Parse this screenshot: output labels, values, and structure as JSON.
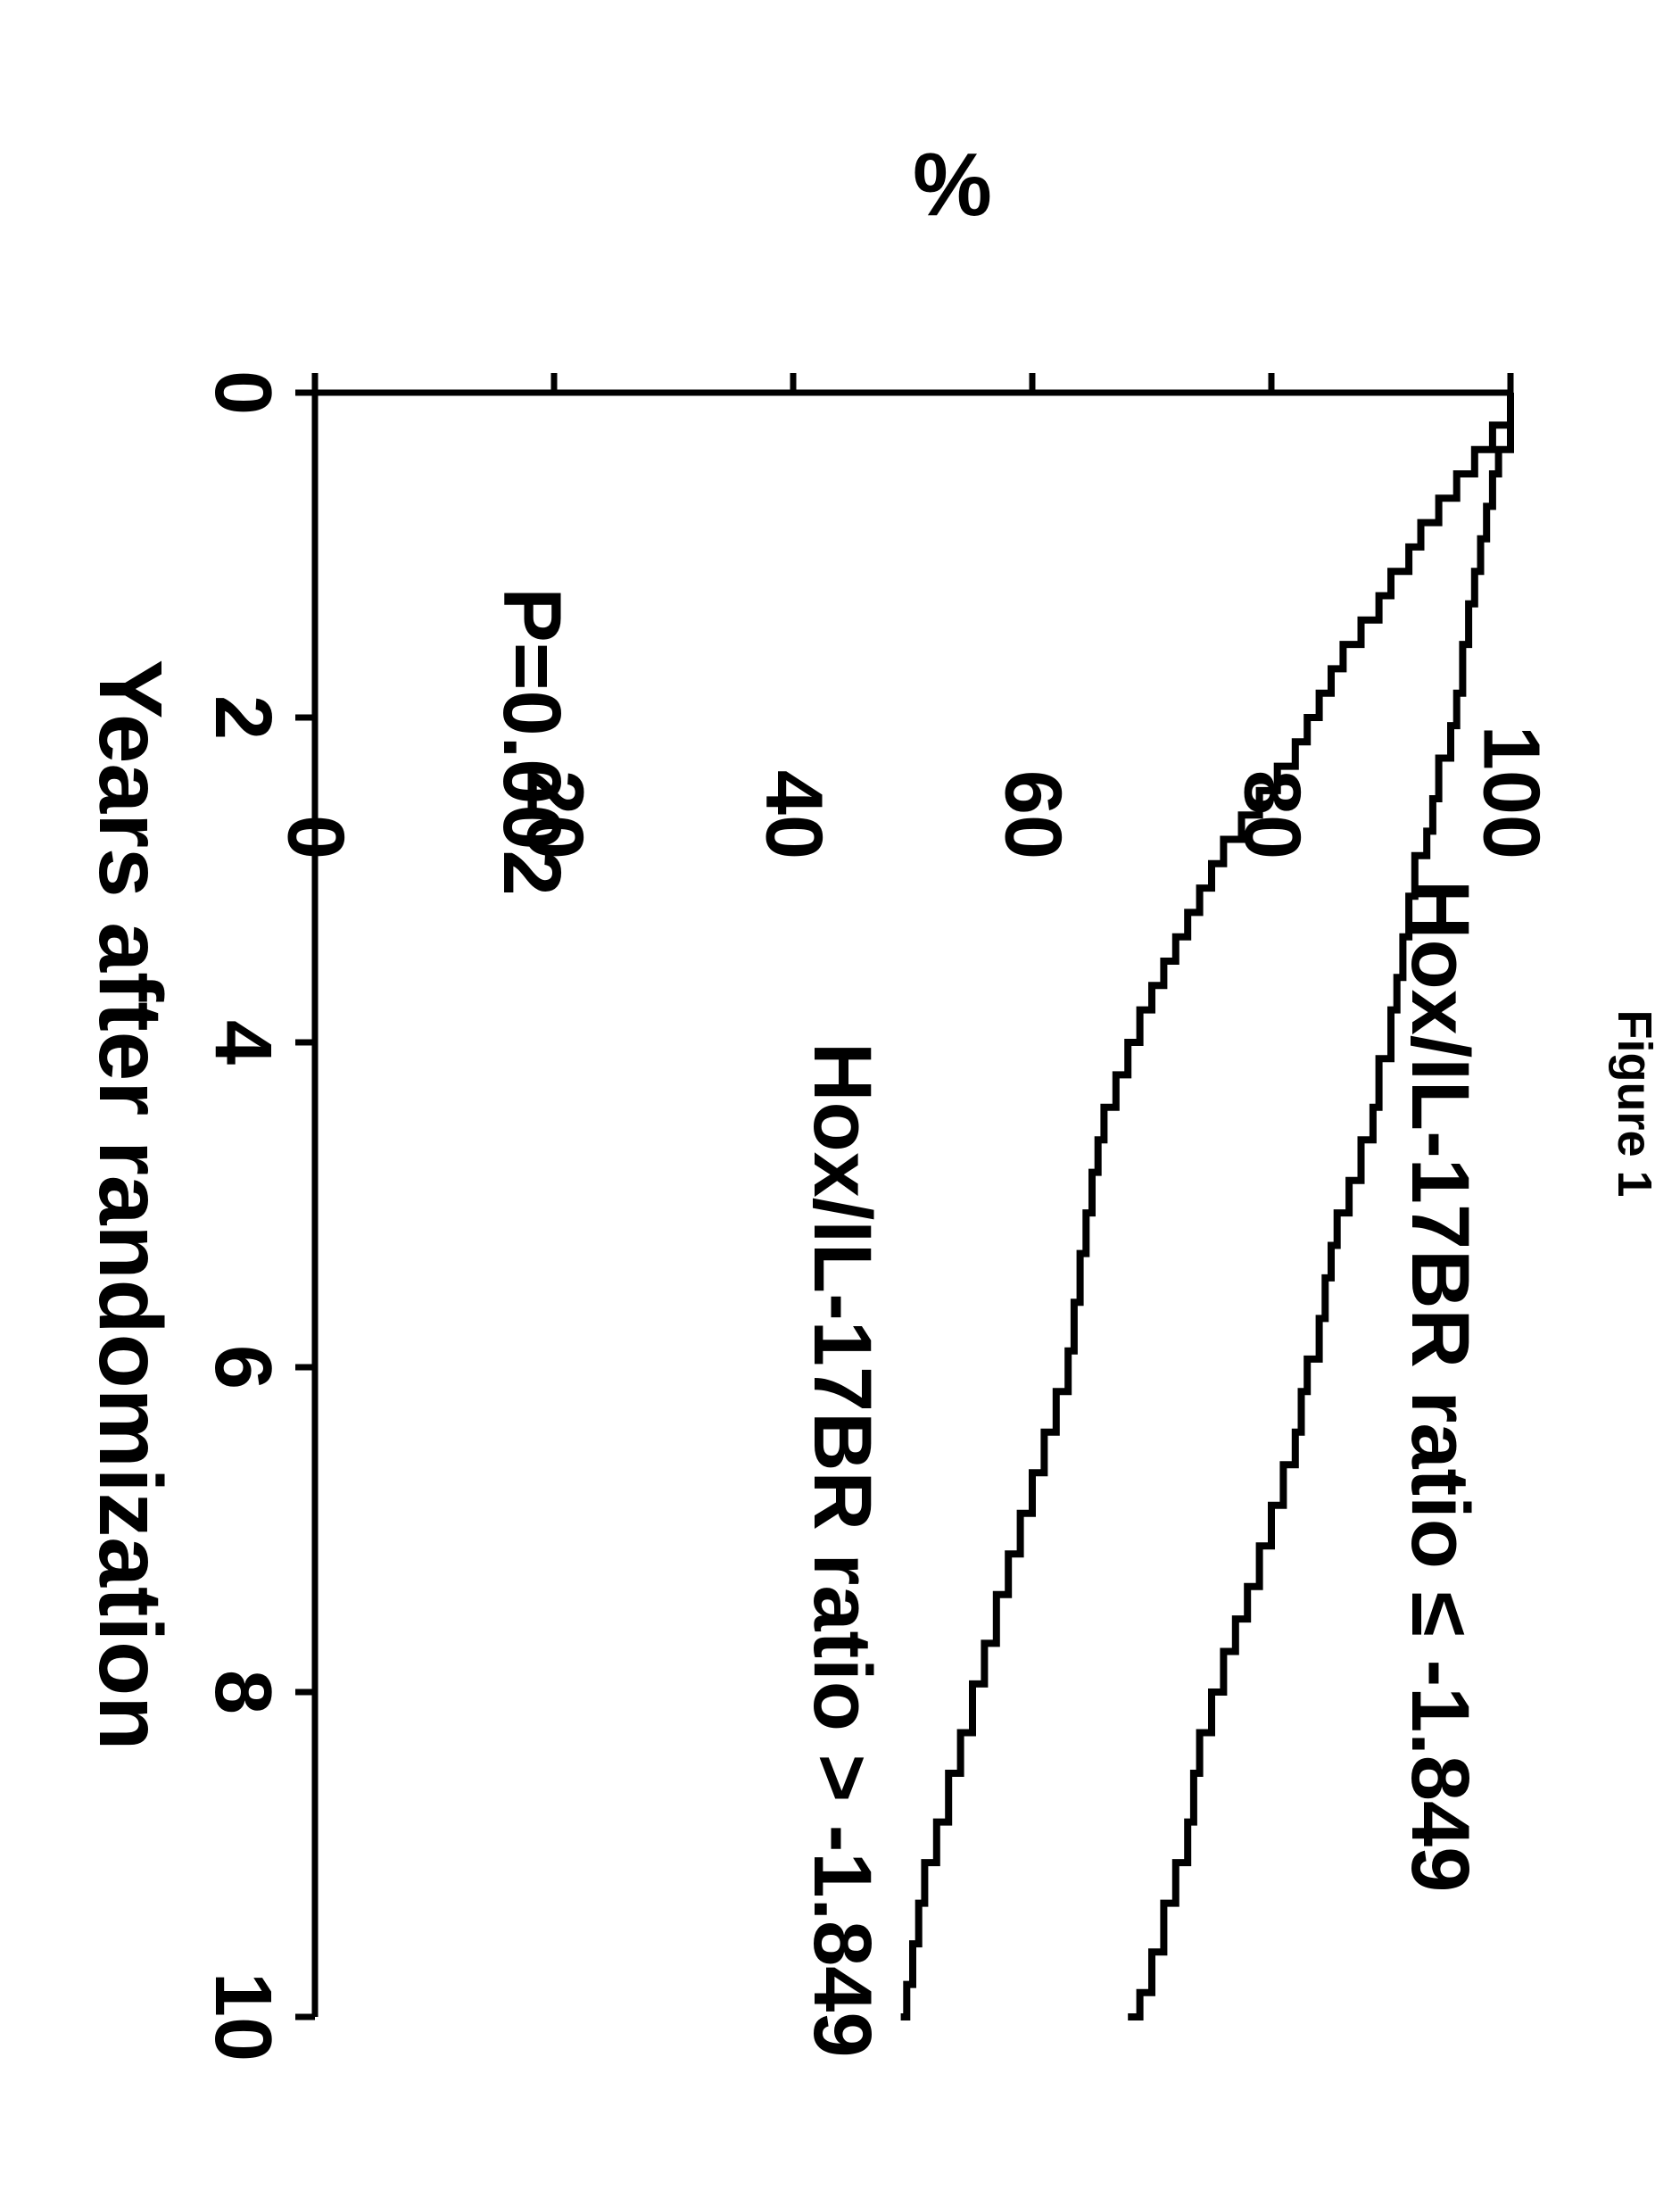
{
  "figure": {
    "title": "Figure 1",
    "chart": {
      "type": "survival-step",
      "xlabel": "Years after randomization",
      "ylabel": "%",
      "xlim": [
        0,
        10
      ],
      "ylim": [
        0,
        100
      ],
      "xticks": [
        0,
        2,
        4,
        6,
        8,
        10
      ],
      "yticks": [
        0,
        20,
        40,
        60,
        80,
        100
      ],
      "background_color": "#ffffff",
      "axis_color": "#000000",
      "axis_width": 7,
      "tick_len": 22,
      "line_color": "#000000",
      "line_width": 8,
      "series": [
        {
          "name": "Hox/IL-17BR ratio ≤ -1.849",
          "points": [
            [
              0,
              100
            ],
            [
              0.35,
              99
            ],
            [
              0.5,
              98.5
            ],
            [
              0.7,
              98
            ],
            [
              0.9,
              97.5
            ],
            [
              1.1,
              97
            ],
            [
              1.3,
              96.5
            ],
            [
              1.55,
              96
            ],
            [
              1.85,
              95.5
            ],
            [
              2.05,
              95
            ],
            [
              2.25,
              94
            ],
            [
              2.5,
              93.5
            ],
            [
              2.7,
              93
            ],
            [
              2.85,
              92
            ],
            [
              3.1,
              91.5
            ],
            [
              3.35,
              91
            ],
            [
              3.6,
              90.5
            ],
            [
              3.8,
              90
            ],
            [
              4.1,
              89
            ],
            [
              4.4,
              88.5
            ],
            [
              4.6,
              87.5
            ],
            [
              4.85,
              86.5
            ],
            [
              5.05,
              85.5
            ],
            [
              5.25,
              85
            ],
            [
              5.45,
              84.5
            ],
            [
              5.7,
              84
            ],
            [
              5.95,
              83
            ],
            [
              6.15,
              82.5
            ],
            [
              6.4,
              82
            ],
            [
              6.6,
              81
            ],
            [
              6.85,
              80
            ],
            [
              7.1,
              79
            ],
            [
              7.35,
              78
            ],
            [
              7.55,
              77
            ],
            [
              7.75,
              76
            ],
            [
              8.0,
              75
            ],
            [
              8.25,
              74
            ],
            [
              8.5,
              73.5
            ],
            [
              8.8,
              73
            ],
            [
              9.05,
              72
            ],
            [
              9.3,
              71
            ],
            [
              9.6,
              70
            ],
            [
              9.85,
              69
            ],
            [
              10,
              68
            ]
          ]
        },
        {
          "name": "Hox/IL-17BR ratio > -1.849",
          "points": [
            [
              0,
              100
            ],
            [
              0.2,
              98.5
            ],
            [
              0.35,
              97
            ],
            [
              0.5,
              95.5
            ],
            [
              0.65,
              94
            ],
            [
              0.8,
              92.5
            ],
            [
              0.95,
              91.5
            ],
            [
              1.1,
              90
            ],
            [
              1.25,
              89
            ],
            [
              1.4,
              87.5
            ],
            [
              1.55,
              86
            ],
            [
              1.7,
              85
            ],
            [
              1.85,
              84
            ],
            [
              2.0,
              83
            ],
            [
              2.15,
              82
            ],
            [
              2.3,
              80.5
            ],
            [
              2.45,
              79
            ],
            [
              2.6,
              77.5
            ],
            [
              2.75,
              76
            ],
            [
              2.9,
              75
            ],
            [
              3.05,
              74
            ],
            [
              3.2,
              73
            ],
            [
              3.35,
              72
            ],
            [
              3.5,
              71
            ],
            [
              3.65,
              70
            ],
            [
              3.8,
              69
            ],
            [
              4.0,
              68
            ],
            [
              4.2,
              67
            ],
            [
              4.4,
              66
            ],
            [
              4.6,
              65.5
            ],
            [
              4.8,
              65
            ],
            [
              5.05,
              64.5
            ],
            [
              5.3,
              64
            ],
            [
              5.6,
              63.5
            ],
            [
              5.9,
              63
            ],
            [
              6.15,
              62
            ],
            [
              6.4,
              61
            ],
            [
              6.65,
              60
            ],
            [
              6.9,
              59
            ],
            [
              7.15,
              58
            ],
            [
              7.4,
              57
            ],
            [
              7.7,
              56
            ],
            [
              7.95,
              55
            ],
            [
              8.25,
              54
            ],
            [
              8.5,
              53
            ],
            [
              8.8,
              52
            ],
            [
              9.05,
              51
            ],
            [
              9.3,
              50.5
            ],
            [
              9.55,
              50
            ],
            [
              9.8,
              49.5
            ],
            [
              10,
              49
            ]
          ]
        }
      ],
      "annotations": {
        "curve1_label": "Hox/IL-17BR ratio ≤ -1.849",
        "curve1_label_pos_xy": [
          3.0,
          98
        ],
        "curve2_label": "Hox/IL-17BR ratio > -1.849",
        "curve2_label_pos_xy": [
          4.0,
          48
        ],
        "pvalue": "P=0.002",
        "pvalue_pos_xy": [
          1.2,
          22
        ]
      }
    }
  }
}
